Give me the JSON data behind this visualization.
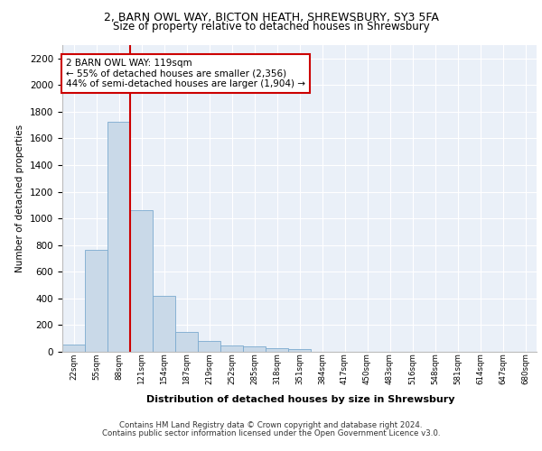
{
  "title_line1": "2, BARN OWL WAY, BICTON HEATH, SHREWSBURY, SY3 5FA",
  "title_line2": "Size of property relative to detached houses in Shrewsbury",
  "xlabel": "Distribution of detached houses by size in Shrewsbury",
  "ylabel": "Number of detached properties",
  "annotation_line1": "2 BARN OWL WAY: 119sqm",
  "annotation_line2": "← 55% of detached houses are smaller (2,356)",
  "annotation_line3": "44% of semi-detached houses are larger (1,904) →",
  "bar_values": [
    55,
    762,
    1726,
    1060,
    420,
    150,
    82,
    48,
    42,
    28,
    18,
    0,
    0,
    0,
    0,
    0,
    0,
    0,
    0,
    0,
    0
  ],
  "bar_labels": [
    "22sqm",
    "55sqm",
    "88sqm",
    "121sqm",
    "154sqm",
    "187sqm",
    "219sqm",
    "252sqm",
    "285sqm",
    "318sqm",
    "351sqm",
    "384sqm",
    "417sqm",
    "450sqm",
    "483sqm",
    "516sqm",
    "548sqm",
    "581sqm",
    "614sqm",
    "647sqm",
    "680sqm"
  ],
  "bar_color": "#c9d9e8",
  "bar_edge_color": "#7baacf",
  "vline_x": 3,
  "vline_color": "#cc0000",
  "annotation_box_color": "#cc0000",
  "ylim": [
    0,
    2300
  ],
  "yticks": [
    0,
    200,
    400,
    600,
    800,
    1000,
    1200,
    1400,
    1600,
    1800,
    2000,
    2200
  ],
  "plot_bg_color": "#eaf0f8",
  "footer_line1": "Contains HM Land Registry data © Crown copyright and database right 2024.",
  "footer_line2": "Contains public sector information licensed under the Open Government Licence v3.0."
}
